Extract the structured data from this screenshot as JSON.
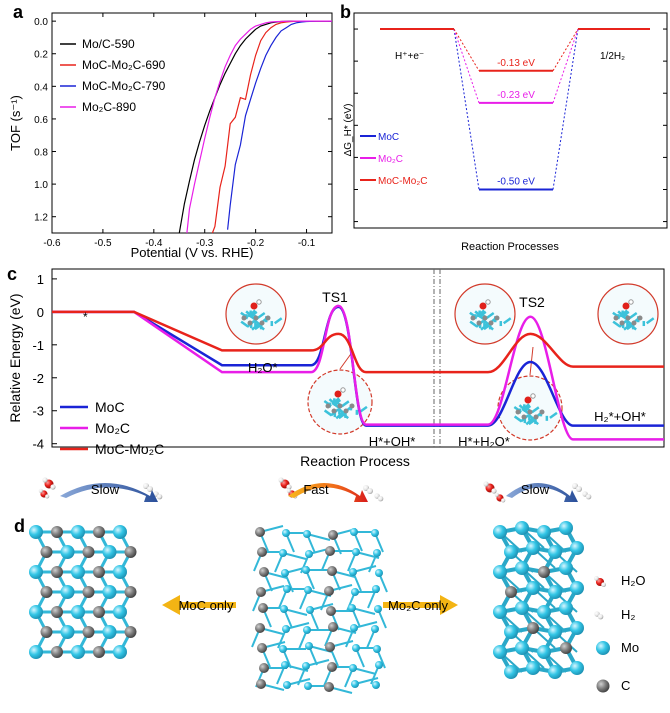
{
  "panels": {
    "a": "a",
    "b": "b",
    "c": "c",
    "d": "d"
  },
  "panel_a": {
    "xlabel": "Potential (V vs. RHE)",
    "ylabel": "TOF (s⁻¹)",
    "xticks": [
      "-0.6",
      "-0.5",
      "-0.4",
      "-0.3",
      "-0.2",
      "-0.1"
    ],
    "yticks": [
      "0.0",
      "0.2",
      "0.4",
      "0.6",
      "0.8",
      "1.0",
      "1.2"
    ],
    "legend": [
      "Mo/C-590",
      "MoC-Mo₂C-690",
      "MoC-Mo₂C-790",
      "Mo₂C-890"
    ],
    "colors": [
      "#000000",
      "#e8231b",
      "#1a24d6",
      "#e81ee8"
    ]
  },
  "panel_b": {
    "ylabel": "ΔG_H* (eV)",
    "xlabel": "Reaction Processes",
    "yticks": [
      "0.0",
      "-0.1",
      "-0.2",
      "-0.3",
      "-0.4",
      "-0.5",
      "-0.6"
    ],
    "left_state": "H⁺+e⁻",
    "right_state": "1/2H₂",
    "legend": [
      "MoC",
      "Mo₂C",
      "MoC-Mo₂C"
    ],
    "colors": [
      "#1a24d6",
      "#e81ee8",
      "#e8231b"
    ],
    "values": [
      -0.5,
      -0.23,
      -0.13
    ],
    "value_labels": [
      "-0.50 eV",
      "-0.23 eV",
      "-0.13 eV"
    ]
  },
  "panel_c": {
    "ylabel": "Relative Energy (eV)",
    "xlabel": "Reaction Process",
    "yticks": [
      "1",
      "0",
      "-1",
      "-2",
      "-3",
      "-4"
    ],
    "legend": [
      "MoC",
      "Mo₂C",
      "MoC-Mo₂C"
    ],
    "colors": [
      "#1a24d6",
      "#e81ee8",
      "#e8231b"
    ],
    "labels": {
      "start": "*",
      "h2o": "H₂O*",
      "ts1": "TS1",
      "hoh1": "H*+OH*",
      "hh2o": "H*+H₂O*",
      "ts2": "TS2",
      "h2oh": "H₂*+OH*"
    }
  },
  "panel_d": {
    "left_rate": "Slow",
    "center_rate": "Fast",
    "right_rate": "Slow",
    "left_arrow": "MoC only",
    "right_arrow": "Mo₂C only",
    "legend": [
      "H₂O",
      "H₂",
      "Mo",
      "C"
    ]
  },
  "chart_data": [
    {
      "type": "line",
      "xlabel": "Potential (V vs. RHE)",
      "ylabel": "TOF (s⁻¹)",
      "xlim": [
        -0.6,
        -0.05
      ],
      "ylim": [
        1.3,
        -0.05
      ],
      "series": [
        {
          "name": "Mo/C-590",
          "x": [
            -0.35,
            -0.34,
            -0.33,
            -0.32,
            -0.31,
            -0.3,
            -0.29,
            -0.28,
            -0.27,
            -0.26,
            -0.25,
            -0.24,
            -0.23,
            -0.22,
            -0.21,
            -0.2,
            -0.19,
            -0.18,
            -0.17,
            -0.16,
            -0.15,
            -0.14,
            -0.13,
            -0.12,
            -0.1,
            -0.05
          ],
          "y": [
            1.3,
            1.12,
            0.98,
            0.85,
            0.74,
            0.64,
            0.55,
            0.47,
            0.39,
            0.32,
            0.26,
            0.2,
            0.15,
            0.11,
            0.08,
            0.05,
            0.03,
            0.02,
            0.01,
            0.005,
            0.002,
            0.001,
            0.0,
            0.0,
            0.0,
            0.0
          ]
        },
        {
          "name": "MoC-Mo₂C-690",
          "x": [
            -0.285,
            -0.28,
            -0.27,
            -0.26,
            -0.25,
            -0.24,
            -0.23,
            -0.22,
            -0.21,
            -0.2,
            -0.19,
            -0.18,
            -0.17,
            -0.16,
            -0.15,
            -0.14,
            -0.13,
            -0.12,
            -0.1,
            -0.05
          ],
          "y": [
            1.3,
            1.22,
            1.05,
            0.85,
            0.66,
            0.55,
            0.5,
            0.44,
            0.33,
            0.21,
            0.12,
            0.07,
            0.04,
            0.02,
            0.01,
            0.005,
            0.002,
            0.001,
            0.0,
            0.0
          ]
        },
        {
          "name": "MoC-Mo₂C-790",
          "x": [
            -0.255,
            -0.25,
            -0.24,
            -0.23,
            -0.22,
            -0.21,
            -0.2,
            -0.19,
            -0.18,
            -0.17,
            -0.16,
            -0.15,
            -0.14,
            -0.13,
            -0.12,
            -0.11,
            -0.1,
            -0.08,
            -0.05
          ],
          "y": [
            1.3,
            1.1,
            0.9,
            0.73,
            0.6,
            0.48,
            0.38,
            0.29,
            0.21,
            0.15,
            0.1,
            0.06,
            0.04,
            0.02,
            0.01,
            0.005,
            0.002,
            0.0,
            0.0
          ]
        },
        {
          "name": "Mo₂C-890",
          "x": [
            -0.335,
            -0.33,
            -0.32,
            -0.31,
            -0.3,
            -0.29,
            -0.28,
            -0.27,
            -0.26,
            -0.25,
            -0.24,
            -0.23,
            -0.22,
            -0.21,
            -0.2,
            -0.19,
            -0.18,
            -0.17,
            -0.16,
            -0.15,
            -0.14,
            -0.12,
            -0.1,
            -0.05
          ],
          "y": [
            1.3,
            1.15,
            1.0,
            0.86,
            0.72,
            0.59,
            0.47,
            0.37,
            0.28,
            0.21,
            0.15,
            0.11,
            0.08,
            0.05,
            0.03,
            0.02,
            0.01,
            0.005,
            0.003,
            0.002,
            0.001,
            0.0,
            0.0,
            0.0
          ]
        }
      ]
    },
    {
      "type": "line",
      "xlabel": "Reaction Processes",
      "ylabel": "ΔG_H* (eV)",
      "ylim": [
        -0.62,
        0.05
      ],
      "categories": [
        "H⁺+e⁻",
        "H*",
        "1/2H₂"
      ],
      "series": [
        {
          "name": "MoC",
          "values": [
            0.0,
            -0.5,
            0.0
          ]
        },
        {
          "name": "Mo₂C",
          "values": [
            0.0,
            -0.23,
            0.0
          ]
        },
        {
          "name": "MoC-Mo₂C",
          "values": [
            0.0,
            -0.13,
            0.0
          ]
        }
      ]
    },
    {
      "type": "line",
      "xlabel": "Reaction Process",
      "ylabel": "Relative Energy (eV)",
      "ylim": [
        -4.1,
        1.3
      ],
      "categories": [
        "*",
        "H₂O*",
        "TS1",
        "H*+OH*",
        "H*+H₂O*",
        "TS2",
        "H₂*+OH*"
      ],
      "series": [
        {
          "name": "MoC",
          "values": [
            0.0,
            -1.62,
            0.15,
            -3.45,
            -3.45,
            -1.52,
            -3.45
          ]
        },
        {
          "name": "Mo₂C",
          "values": [
            0.0,
            -1.83,
            0.18,
            -3.42,
            -3.42,
            -0.15,
            -3.87
          ]
        },
        {
          "name": "MoC-Mo₂C",
          "values": [
            0.0,
            -1.17,
            -0.67,
            -1.83,
            -1.83,
            -0.67,
            -1.66
          ]
        }
      ]
    }
  ]
}
